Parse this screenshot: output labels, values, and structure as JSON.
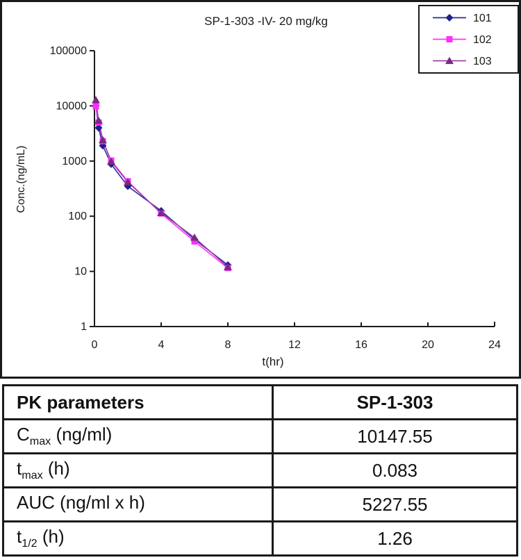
{
  "chart_data": {
    "type": "line",
    "title": "SP-1-303 -IV- 20 mg/kg",
    "xlabel": "t(hr)",
    "ylabel": "Conc.(ng/mL)",
    "y_scale": "log",
    "xlim": [
      0,
      24
    ],
    "ylim": [
      1,
      100000
    ],
    "grid": false,
    "legend_position": "top-right",
    "x": [
      0.083,
      0.25,
      0.5,
      1,
      2,
      4,
      6,
      8
    ],
    "series": [
      {
        "name": "101",
        "marker": "diamond",
        "line_color": "#2929A3",
        "marker_color": "#1F1F8C",
        "values": [
          10100,
          4000,
          1900,
          880,
          350,
          125,
          38,
          13
        ]
      },
      {
        "name": "102",
        "marker": "square",
        "line_color": "#FF30FF",
        "marker_color": "#FF2EFF",
        "values": [
          9800,
          5000,
          2300,
          1020,
          430,
          112,
          35,
          11.5
        ]
      },
      {
        "name": "103",
        "marker": "triangle",
        "line_color": "#A040A8",
        "marker_color": "#7A2982",
        "values": [
          12800,
          5400,
          2400,
          980,
          415,
          115,
          41,
          12
        ]
      }
    ],
    "x_tick_labels": [
      "0",
      "4",
      "8",
      "12",
      "16",
      "20",
      "24"
    ],
    "y_tick_labels": [
      "1",
      "10",
      "100",
      "1000",
      "10000",
      "100000"
    ]
  },
  "table": {
    "header": {
      "col1": "PK parameters",
      "col2": "SP-1-303"
    },
    "rows": [
      {
        "param_base": "C",
        "param_sub": "max",
        "param_rest": " (ng/ml)",
        "value": "10147.55"
      },
      {
        "param_base": "t",
        "param_sub": "max",
        "param_rest": " (h)",
        "value": "0.083"
      },
      {
        "param_base": "AUC (ng/ml x h)",
        "param_sub": "",
        "param_rest": "",
        "value": "5227.55"
      },
      {
        "param_base": "t",
        "param_sub": "1/2",
        "param_rest": " (h)",
        "value": "1.26"
      }
    ]
  }
}
